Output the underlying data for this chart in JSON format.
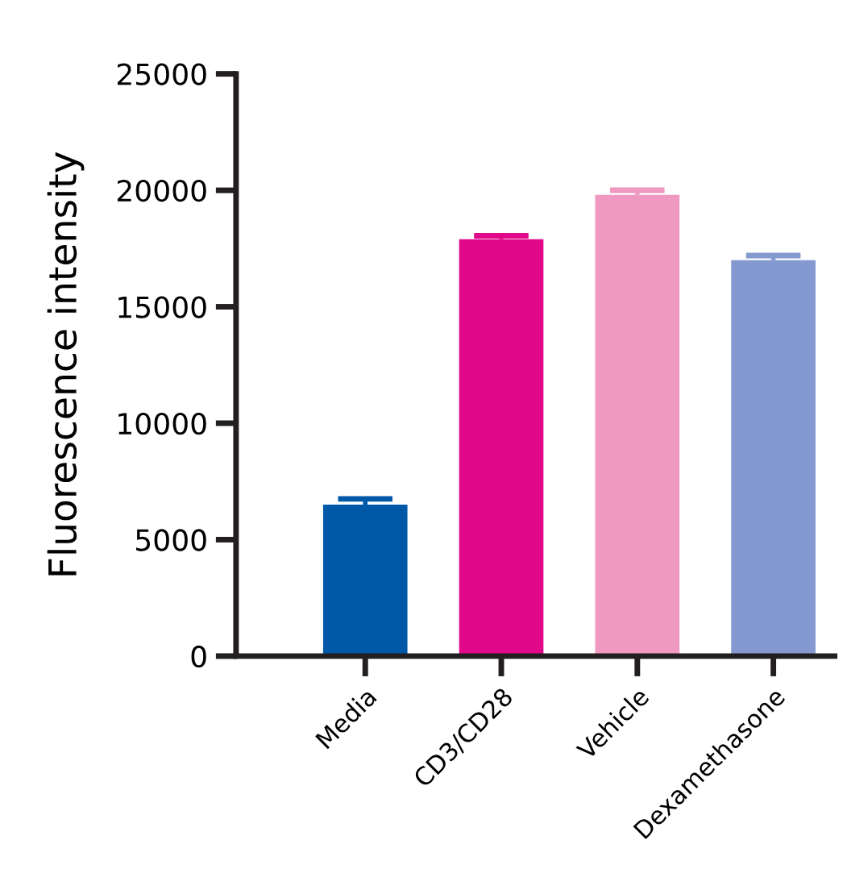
{
  "chart_data": {
    "type": "bar",
    "ylabel": "Fluorescence intensity",
    "categories": [
      "Media",
      "CD3/CD28",
      "Vehicle",
      "Dexamethasone"
    ],
    "values": [
      6500,
      17900,
      19800,
      17000
    ],
    "errors": [
      [
        6500,
        6750
      ],
      [
        17900,
        18050
      ],
      [
        19800,
        20000
      ],
      [
        17000,
        17200
      ]
    ],
    "colors": [
      "#0059a8",
      "#e2088a",
      "#ee98c2",
      "#8399d0"
    ],
    "ylim": [
      0,
      25000
    ],
    "yticks": [
      0,
      5000,
      10000,
      15000,
      20000,
      25000
    ],
    "grid": false
  }
}
